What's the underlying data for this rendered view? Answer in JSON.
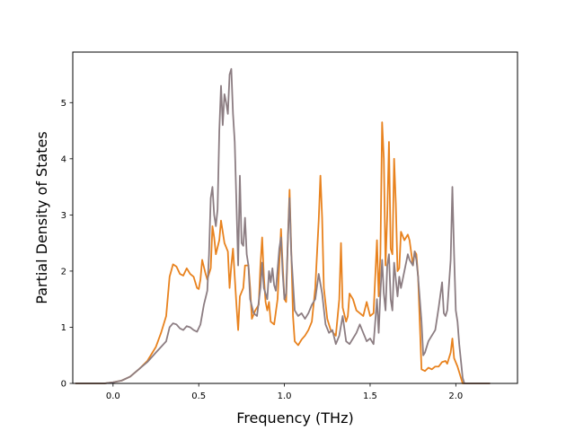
{
  "chart_data": {
    "type": "line",
    "title": "",
    "xlabel": "Frequency (THz)",
    "ylabel": "Partial Density of States",
    "xlim": [
      -0.235,
      2.36
    ],
    "ylim": [
      0,
      5.9
    ],
    "xticks": [
      0.0,
      0.5,
      1.0,
      1.5,
      2.0
    ],
    "xtick_labels": [
      "0.0",
      "0.5",
      "1.0",
      "1.5",
      "2.0"
    ],
    "yticks": [
      0,
      1,
      2,
      3,
      4,
      5
    ],
    "ytick_labels": [
      "0",
      "1",
      "2",
      "3",
      "4",
      "5"
    ],
    "grid": false,
    "legend": false,
    "series": [
      {
        "color": "#e8821e",
        "points": [
          [
            -0.22,
            0
          ],
          [
            -0.05,
            0
          ],
          [
            0.0,
            0.02
          ],
          [
            0.05,
            0.05
          ],
          [
            0.1,
            0.12
          ],
          [
            0.15,
            0.25
          ],
          [
            0.2,
            0.4
          ],
          [
            0.25,
            0.65
          ],
          [
            0.28,
            0.9
          ],
          [
            0.31,
            1.2
          ],
          [
            0.33,
            1.9
          ],
          [
            0.35,
            2.12
          ],
          [
            0.37,
            2.08
          ],
          [
            0.39,
            1.95
          ],
          [
            0.41,
            1.92
          ],
          [
            0.43,
            2.05
          ],
          [
            0.45,
            1.95
          ],
          [
            0.47,
            1.9
          ],
          [
            0.49,
            1.7
          ],
          [
            0.5,
            1.68
          ],
          [
            0.51,
            1.85
          ],
          [
            0.52,
            2.2
          ],
          [
            0.54,
            1.95
          ],
          [
            0.55,
            1.85
          ],
          [
            0.57,
            2.05
          ],
          [
            0.58,
            2.8
          ],
          [
            0.59,
            2.6
          ],
          [
            0.6,
            2.3
          ],
          [
            0.62,
            2.55
          ],
          [
            0.63,
            2.9
          ],
          [
            0.65,
            2.5
          ],
          [
            0.67,
            2.35
          ],
          [
            0.68,
            1.7
          ],
          [
            0.69,
            2.1
          ],
          [
            0.7,
            2.4
          ],
          [
            0.71,
            1.9
          ],
          [
            0.72,
            1.4
          ],
          [
            0.73,
            0.95
          ],
          [
            0.74,
            1.55
          ],
          [
            0.76,
            1.7
          ],
          [
            0.77,
            2.1
          ],
          [
            0.79,
            2.1
          ],
          [
            0.8,
            1.7
          ],
          [
            0.81,
            1.15
          ],
          [
            0.83,
            1.3
          ],
          [
            0.85,
            1.4
          ],
          [
            0.86,
            2.1
          ],
          [
            0.87,
            2.6
          ],
          [
            0.88,
            1.9
          ],
          [
            0.89,
            1.45
          ],
          [
            0.9,
            1.3
          ],
          [
            0.91,
            1.45
          ],
          [
            0.92,
            1.1
          ],
          [
            0.94,
            1.05
          ],
          [
            0.96,
            1.5
          ],
          [
            0.98,
            2.75
          ],
          [
            0.99,
            2.1
          ],
          [
            1.0,
            1.5
          ],
          [
            1.01,
            1.45
          ],
          [
            1.02,
            2.55
          ],
          [
            1.03,
            3.45
          ],
          [
            1.04,
            2.35
          ],
          [
            1.05,
            1.2
          ],
          [
            1.06,
            0.75
          ],
          [
            1.08,
            0.68
          ],
          [
            1.1,
            0.78
          ],
          [
            1.12,
            0.85
          ],
          [
            1.14,
            0.95
          ],
          [
            1.16,
            1.1
          ],
          [
            1.18,
            1.7
          ],
          [
            1.2,
            2.9
          ],
          [
            1.21,
            3.7
          ],
          [
            1.22,
            2.95
          ],
          [
            1.23,
            1.7
          ],
          [
            1.25,
            1.15
          ],
          [
            1.27,
            0.95
          ],
          [
            1.3,
            0.85
          ],
          [
            1.32,
            1.5
          ],
          [
            1.33,
            2.5
          ],
          [
            1.34,
            1.35
          ],
          [
            1.36,
            1.1
          ],
          [
            1.37,
            1.2
          ],
          [
            1.38,
            1.6
          ],
          [
            1.4,
            1.5
          ],
          [
            1.42,
            1.3
          ],
          [
            1.44,
            1.25
          ],
          [
            1.46,
            1.2
          ],
          [
            1.48,
            1.45
          ],
          [
            1.5,
            1.2
          ],
          [
            1.52,
            1.25
          ],
          [
            1.54,
            2.55
          ],
          [
            1.55,
            1.55
          ],
          [
            1.56,
            2.3
          ],
          [
            1.57,
            4.65
          ],
          [
            1.58,
            4.0
          ],
          [
            1.59,
            2.1
          ],
          [
            1.6,
            3.0
          ],
          [
            1.61,
            4.3
          ],
          [
            1.62,
            2.4
          ],
          [
            1.63,
            2.3
          ],
          [
            1.64,
            4.0
          ],
          [
            1.65,
            3.2
          ],
          [
            1.66,
            2.0
          ],
          [
            1.67,
            2.05
          ],
          [
            1.68,
            2.7
          ],
          [
            1.7,
            2.55
          ],
          [
            1.72,
            2.65
          ],
          [
            1.73,
            2.55
          ],
          [
            1.75,
            2.1
          ],
          [
            1.76,
            2.35
          ],
          [
            1.77,
            2.3
          ],
          [
            1.78,
            1.9
          ],
          [
            1.8,
            0.25
          ],
          [
            1.82,
            0.22
          ],
          [
            1.84,
            0.28
          ],
          [
            1.86,
            0.25
          ],
          [
            1.88,
            0.3
          ],
          [
            1.9,
            0.3
          ],
          [
            1.92,
            0.38
          ],
          [
            1.94,
            0.4
          ],
          [
            1.95,
            0.35
          ],
          [
            1.97,
            0.55
          ],
          [
            1.98,
            0.8
          ],
          [
            1.99,
            0.45
          ],
          [
            2.01,
            0.3
          ],
          [
            2.03,
            0.1
          ],
          [
            2.04,
            0
          ],
          [
            2.2,
            0
          ]
        ]
      },
      {
        "color": "#8c7d82",
        "points": [
          [
            -0.22,
            0
          ],
          [
            -0.05,
            0
          ],
          [
            0.0,
            0.02
          ],
          [
            0.05,
            0.05
          ],
          [
            0.1,
            0.12
          ],
          [
            0.15,
            0.25
          ],
          [
            0.2,
            0.38
          ],
          [
            0.25,
            0.55
          ],
          [
            0.28,
            0.65
          ],
          [
            0.31,
            0.75
          ],
          [
            0.33,
            1.0
          ],
          [
            0.35,
            1.07
          ],
          [
            0.37,
            1.05
          ],
          [
            0.39,
            0.98
          ],
          [
            0.41,
            0.95
          ],
          [
            0.43,
            1.02
          ],
          [
            0.45,
            1.0
          ],
          [
            0.47,
            0.95
          ],
          [
            0.49,
            0.92
          ],
          [
            0.51,
            1.05
          ],
          [
            0.53,
            1.4
          ],
          [
            0.55,
            1.65
          ],
          [
            0.56,
            2.3
          ],
          [
            0.57,
            3.3
          ],
          [
            0.58,
            3.5
          ],
          [
            0.59,
            3.0
          ],
          [
            0.6,
            2.8
          ],
          [
            0.61,
            3.1
          ],
          [
            0.62,
            4.5
          ],
          [
            0.63,
            5.3
          ],
          [
            0.64,
            4.6
          ],
          [
            0.65,
            5.15
          ],
          [
            0.66,
            5.0
          ],
          [
            0.67,
            4.8
          ],
          [
            0.68,
            5.5
          ],
          [
            0.69,
            5.6
          ],
          [
            0.7,
            4.8
          ],
          [
            0.71,
            4.3
          ],
          [
            0.72,
            3.2
          ],
          [
            0.73,
            2.1
          ],
          [
            0.74,
            3.7
          ],
          [
            0.75,
            2.5
          ],
          [
            0.76,
            2.45
          ],
          [
            0.77,
            2.95
          ],
          [
            0.78,
            2.3
          ],
          [
            0.79,
            2.1
          ],
          [
            0.8,
            1.5
          ],
          [
            0.82,
            1.25
          ],
          [
            0.84,
            1.2
          ],
          [
            0.86,
            1.7
          ],
          [
            0.87,
            2.15
          ],
          [
            0.88,
            1.7
          ],
          [
            0.9,
            1.5
          ],
          [
            0.91,
            2.0
          ],
          [
            0.92,
            1.8
          ],
          [
            0.93,
            2.05
          ],
          [
            0.94,
            1.75
          ],
          [
            0.95,
            1.65
          ],
          [
            0.97,
            2.4
          ],
          [
            0.98,
            2.6
          ],
          [
            0.99,
            1.95
          ],
          [
            1.0,
            1.5
          ],
          [
            1.01,
            1.6
          ],
          [
            1.02,
            2.55
          ],
          [
            1.03,
            3.3
          ],
          [
            1.04,
            2.3
          ],
          [
            1.06,
            1.3
          ],
          [
            1.08,
            1.2
          ],
          [
            1.1,
            1.25
          ],
          [
            1.12,
            1.15
          ],
          [
            1.14,
            1.25
          ],
          [
            1.16,
            1.4
          ],
          [
            1.18,
            1.5
          ],
          [
            1.2,
            1.95
          ],
          [
            1.22,
            1.6
          ],
          [
            1.24,
            1.05
          ],
          [
            1.26,
            0.9
          ],
          [
            1.28,
            0.95
          ],
          [
            1.3,
            0.7
          ],
          [
            1.32,
            0.85
          ],
          [
            1.34,
            1.2
          ],
          [
            1.36,
            0.75
          ],
          [
            1.38,
            0.7
          ],
          [
            1.4,
            0.8
          ],
          [
            1.42,
            0.9
          ],
          [
            1.44,
            1.05
          ],
          [
            1.46,
            0.9
          ],
          [
            1.48,
            0.75
          ],
          [
            1.5,
            0.8
          ],
          [
            1.52,
            0.7
          ],
          [
            1.54,
            1.5
          ],
          [
            1.55,
            0.9
          ],
          [
            1.56,
            1.6
          ],
          [
            1.57,
            2.2
          ],
          [
            1.58,
            1.6
          ],
          [
            1.59,
            1.3
          ],
          [
            1.6,
            2.1
          ],
          [
            1.61,
            2.3
          ],
          [
            1.62,
            1.5
          ],
          [
            1.63,
            1.3
          ],
          [
            1.64,
            2.15
          ],
          [
            1.65,
            1.85
          ],
          [
            1.66,
            1.55
          ],
          [
            1.67,
            1.9
          ],
          [
            1.68,
            1.7
          ],
          [
            1.7,
            2.0
          ],
          [
            1.72,
            2.3
          ],
          [
            1.73,
            2.2
          ],
          [
            1.75,
            2.1
          ],
          [
            1.76,
            2.35
          ],
          [
            1.77,
            2.2
          ],
          [
            1.78,
            1.9
          ],
          [
            1.8,
            1.1
          ],
          [
            1.81,
            0.5
          ],
          [
            1.82,
            0.55
          ],
          [
            1.84,
            0.75
          ],
          [
            1.86,
            0.85
          ],
          [
            1.88,
            0.95
          ],
          [
            1.9,
            1.35
          ],
          [
            1.92,
            1.8
          ],
          [
            1.93,
            1.25
          ],
          [
            1.94,
            1.2
          ],
          [
            1.95,
            1.3
          ],
          [
            1.97,
            2.2
          ],
          [
            1.98,
            3.5
          ],
          [
            1.99,
            2.3
          ],
          [
            2.0,
            1.3
          ],
          [
            2.01,
            1.1
          ],
          [
            2.02,
            0.7
          ],
          [
            2.03,
            0.4
          ],
          [
            2.04,
            0.1
          ],
          [
            2.05,
            0
          ],
          [
            2.2,
            0
          ]
        ]
      }
    ]
  }
}
